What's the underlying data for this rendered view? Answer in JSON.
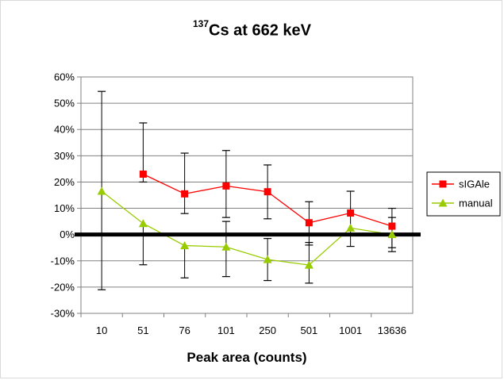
{
  "chart_data": {
    "type": "line",
    "title_super": "137",
    "title_main": "Cs at 662 keV",
    "xlabel": "Peak area (counts)",
    "ylabel": "",
    "categories": [
      "10",
      "51",
      "76",
      "101",
      "250",
      "501",
      "1001",
      "13636"
    ],
    "y_ticks": [
      "60%",
      "50%",
      "40%",
      "30%",
      "20%",
      "10%",
      "0%",
      "-10%",
      "-20%",
      "-30%"
    ],
    "ylim": [
      -30,
      60
    ],
    "grid": true,
    "legend_position": "right",
    "reference_line_y": 0,
    "series": [
      {
        "name": "sIGAle",
        "color": "#ff0000",
        "marker": "square",
        "values": [
          null,
          23,
          15.5,
          18.5,
          16.3,
          4.5,
          8.2,
          3.2
        ],
        "err_low": [
          null,
          20,
          8,
          6.5,
          6,
          -4,
          -4.5,
          -6.5
        ],
        "err_high": [
          null,
          42.5,
          31,
          32,
          26.5,
          12.5,
          16.5,
          10
        ]
      },
      {
        "name": "manual",
        "color": "#99cc00",
        "marker": "triangle",
        "values": [
          16.5,
          4.2,
          -4.2,
          -4.7,
          -9.5,
          -11.6,
          2.5,
          0
        ],
        "err_low": [
          -21,
          -11.5,
          -16.5,
          -16,
          -17.5,
          -18.5,
          null,
          -5
        ],
        "err_high": [
          54.5,
          null,
          null,
          5,
          -1.5,
          -3,
          null,
          6.5
        ]
      }
    ]
  }
}
